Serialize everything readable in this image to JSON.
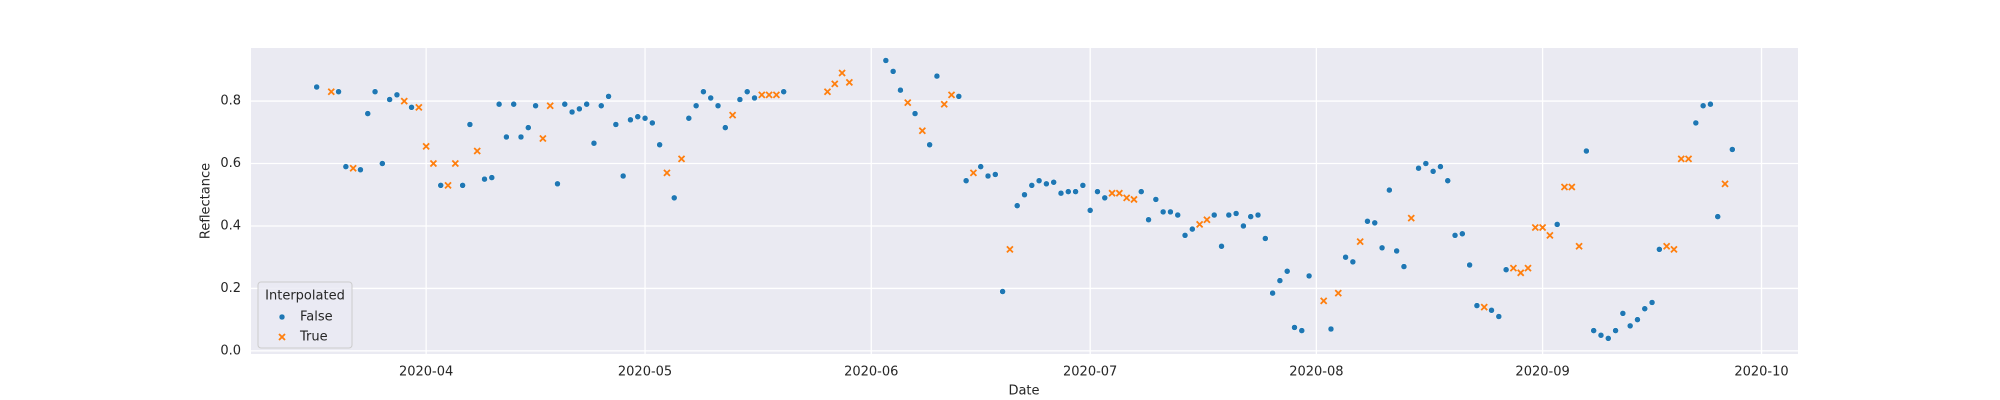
{
  "chart_data": {
    "type": "scatter",
    "xlabel": "Date",
    "ylabel": "Reflectance",
    "legend_title": "Interpolated",
    "legend_loc": "lower left",
    "grid": true,
    "xlim": [
      "2020-03-08",
      "2020-10-06"
    ],
    "xticks": [
      {
        "value": "2020-04-01",
        "label": "2020-04"
      },
      {
        "value": "2020-05-01",
        "label": "2020-05"
      },
      {
        "value": "2020-06-01",
        "label": "2020-06"
      },
      {
        "value": "2020-07-01",
        "label": "2020-07"
      },
      {
        "value": "2020-08-01",
        "label": "2020-08"
      },
      {
        "value": "2020-09-01",
        "label": "2020-09"
      },
      {
        "value": "2020-10-01",
        "label": "2020-10"
      }
    ],
    "ylim": [
      -0.01,
      0.97
    ],
    "yticks": [
      {
        "value": 0,
        "label": "0.0"
      },
      0.2,
      0.4,
      0.6,
      0.8
    ],
    "series": [
      {
        "name": "False",
        "color": "#1f77b4",
        "marker": "o",
        "x": [
          "2020-03-17",
          "2020-03-20",
          "2020-03-21",
          "2020-03-23",
          "2020-03-24",
          "2020-03-25",
          "2020-03-26",
          "2020-03-27",
          "2020-03-28",
          "2020-03-30",
          "2020-04-03",
          "2020-04-06",
          "2020-04-07",
          "2020-04-09",
          "2020-04-10",
          "2020-04-11",
          "2020-04-12",
          "2020-04-13",
          "2020-04-14",
          "2020-04-15",
          "2020-04-16",
          "2020-04-19",
          "2020-04-20",
          "2020-04-21",
          "2020-04-22",
          "2020-04-23",
          "2020-04-24",
          "2020-04-25",
          "2020-04-26",
          "2020-04-27",
          "2020-04-28",
          "2020-04-29",
          "2020-04-30",
          "2020-05-01",
          "2020-05-02",
          "2020-05-03",
          "2020-05-05",
          "2020-05-07",
          "2020-05-08",
          "2020-05-09",
          "2020-05-10",
          "2020-05-11",
          "2020-05-12",
          "2020-05-14",
          "2020-05-15",
          "2020-05-16",
          "2020-05-20",
          "2020-06-03",
          "2020-06-04",
          "2020-06-05",
          "2020-06-07",
          "2020-06-09",
          "2020-06-10",
          "2020-06-13",
          "2020-06-14",
          "2020-06-16",
          "2020-06-17",
          "2020-06-18",
          "2020-06-19",
          "2020-06-21",
          "2020-06-22",
          "2020-06-23",
          "2020-06-24",
          "2020-06-25",
          "2020-06-26",
          "2020-06-27",
          "2020-06-28",
          "2020-06-29",
          "2020-06-30",
          "2020-07-01",
          "2020-07-02",
          "2020-07-03",
          "2020-07-08",
          "2020-07-09",
          "2020-07-10",
          "2020-07-11",
          "2020-07-12",
          "2020-07-13",
          "2020-07-14",
          "2020-07-15",
          "2020-07-18",
          "2020-07-19",
          "2020-07-20",
          "2020-07-21",
          "2020-07-22",
          "2020-07-23",
          "2020-07-24",
          "2020-07-25",
          "2020-07-26",
          "2020-07-27",
          "2020-07-28",
          "2020-07-29",
          "2020-07-30",
          "2020-07-31",
          "2020-08-03",
          "2020-08-05",
          "2020-08-06",
          "2020-08-08",
          "2020-08-09",
          "2020-08-10",
          "2020-08-11",
          "2020-08-12",
          "2020-08-13",
          "2020-08-15",
          "2020-08-16",
          "2020-08-17",
          "2020-08-18",
          "2020-08-19",
          "2020-08-20",
          "2020-08-21",
          "2020-08-22",
          "2020-08-23",
          "2020-08-25",
          "2020-08-26",
          "2020-08-27",
          "2020-09-03",
          "2020-09-07",
          "2020-09-08",
          "2020-09-09",
          "2020-09-10",
          "2020-09-11",
          "2020-09-12",
          "2020-09-13",
          "2020-09-14",
          "2020-09-15",
          "2020-09-16",
          "2020-09-17",
          "2020-09-22",
          "2020-09-23",
          "2020-09-24",
          "2020-09-25",
          "2020-09-27"
        ],
        "values": [
          0.845,
          0.83,
          0.59,
          0.58,
          0.76,
          0.83,
          0.6,
          0.805,
          0.82,
          0.78,
          0.53,
          0.53,
          0.725,
          0.55,
          0.555,
          0.79,
          0.685,
          0.79,
          0.685,
          0.715,
          0.785,
          0.535,
          0.79,
          0.765,
          0.775,
          0.79,
          0.665,
          0.785,
          0.815,
          0.725,
          0.56,
          0.74,
          0.75,
          0.745,
          0.73,
          0.66,
          0.49,
          0.745,
          0.785,
          0.83,
          0.81,
          0.785,
          0.715,
          0.805,
          0.83,
          0.81,
          0.83,
          0.93,
          0.895,
          0.835,
          0.76,
          0.66,
          0.88,
          0.815,
          0.545,
          0.59,
          0.56,
          0.565,
          0.19,
          0.465,
          0.5,
          0.53,
          0.545,
          0.535,
          0.54,
          0.505,
          0.51,
          0.51,
          0.53,
          0.45,
          0.51,
          0.49,
          0.51,
          0.42,
          0.485,
          0.445,
          0.445,
          0.435,
          0.37,
          0.39,
          0.435,
          0.335,
          0.435,
          0.44,
          0.4,
          0.43,
          0.435,
          0.36,
          0.185,
          0.225,
          0.255,
          0.075,
          0.065,
          0.24,
          0.07,
          0.3,
          0.285,
          0.415,
          0.41,
          0.33,
          0.515,
          0.32,
          0.27,
          0.585,
          0.6,
          0.575,
          0.59,
          0.545,
          0.37,
          0.375,
          0.275,
          0.145,
          0.13,
          0.11,
          0.26,
          0.405,
          0.64,
          0.065,
          0.05,
          0.04,
          0.065,
          0.12,
          0.08,
          0.1,
          0.135,
          0.155,
          0.325,
          0.73,
          0.785,
          0.79,
          0.43,
          0.645
        ]
      },
      {
        "name": "True",
        "color": "#ff7f0e",
        "marker": "x",
        "x": [
          "2020-03-19",
          "2020-03-22",
          "2020-03-29",
          "2020-03-31",
          "2020-04-01",
          "2020-04-02",
          "2020-04-04",
          "2020-04-05",
          "2020-04-08",
          "2020-04-17",
          "2020-04-18",
          "2020-05-04",
          "2020-05-06",
          "2020-05-13",
          "2020-05-17",
          "2020-05-18",
          "2020-05-19",
          "2020-05-26",
          "2020-05-27",
          "2020-05-28",
          "2020-05-29",
          "2020-06-06",
          "2020-06-08",
          "2020-06-11",
          "2020-06-12",
          "2020-06-15",
          "2020-06-20",
          "2020-07-04",
          "2020-07-05",
          "2020-07-06",
          "2020-07-07",
          "2020-07-16",
          "2020-07-17",
          "2020-08-02",
          "2020-08-04",
          "2020-08-07",
          "2020-08-14",
          "2020-08-24",
          "2020-08-28",
          "2020-08-29",
          "2020-08-30",
          "2020-08-31",
          "2020-09-01",
          "2020-09-02",
          "2020-09-04",
          "2020-09-05",
          "2020-09-06",
          "2020-09-18",
          "2020-09-19",
          "2020-09-20",
          "2020-09-21",
          "2020-09-26"
        ],
        "values": [
          0.83,
          0.585,
          0.8,
          0.78,
          0.655,
          0.6,
          0.53,
          0.6,
          0.64,
          0.68,
          0.785,
          0.57,
          0.615,
          0.755,
          0.82,
          0.82,
          0.82,
          0.83,
          0.855,
          0.89,
          0.86,
          0.795,
          0.705,
          0.79,
          0.82,
          0.57,
          0.325,
          0.505,
          0.505,
          0.49,
          0.485,
          0.405,
          0.42,
          0.16,
          0.185,
          0.35,
          0.425,
          0.14,
          0.265,
          0.25,
          0.265,
          0.395,
          0.395,
          0.37,
          0.525,
          0.525,
          0.335,
          0.335,
          0.325,
          0.615,
          0.615,
          0.535
        ]
      }
    ]
  }
}
